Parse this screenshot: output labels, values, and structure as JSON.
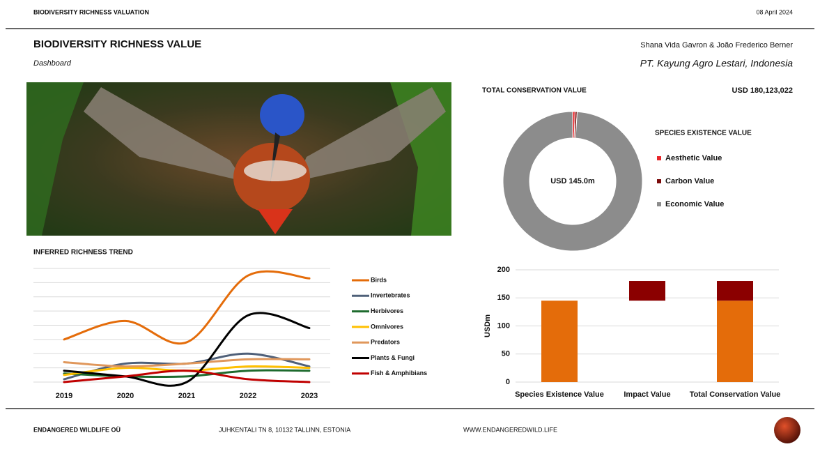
{
  "header": {
    "left": "BIODIVERSITY RICHNESS VALUATION",
    "date": "08 April 2024"
  },
  "title": "BIODIVERSITY RICHNESS VALUE",
  "subtitle": "Dashboard",
  "authors": "Shana Vida Gavron & João Frederico Berner",
  "company": "PT. Kayung Agro Lestari, Indonesia",
  "total_conservation": {
    "label": "TOTAL CONSERVATION VALUE",
    "value": "USD 180,123,022"
  },
  "footer": {
    "company": "ENDANGERED WILDLIFE OÜ",
    "address": "JUHKENTALI TN 8, 10132 TALLINN, ESTONIA",
    "website": "WWW.ENDANGEREDWILD.LIFE"
  },
  "chart_data": [
    {
      "type": "donut",
      "title": "SPECIES EXISTENCE VALUE",
      "center_label": "USD 145.0m",
      "categories": [
        "Aesthetic Value",
        "Carbon Value",
        "Economic Value"
      ],
      "values": [
        0.8,
        0.7,
        143.5
      ],
      "colors": [
        "#e8262a",
        "#7b0a0a",
        "#8c8c8c"
      ]
    },
    {
      "type": "line",
      "title": "INFERRED RICHNESS TREND",
      "categories": [
        "2019",
        "2020",
        "2021",
        "2022",
        "2023"
      ],
      "series": [
        {
          "name": "Birds",
          "color": "#e46c0a",
          "values": [
            3.0,
            4.3,
            2.8,
            7.5,
            7.3
          ]
        },
        {
          "name": "Invertebrates",
          "color": "#4f6079",
          "values": [
            0.2,
            1.3,
            1.3,
            2.0,
            1.1
          ]
        },
        {
          "name": "Herbivores",
          "color": "#1e6b2e",
          "values": [
            0.6,
            0.4,
            0.4,
            0.8,
            0.8
          ]
        },
        {
          "name": "Omnivores",
          "color": "#ffc000",
          "values": [
            0.5,
            1.0,
            0.8,
            1.1,
            1.0
          ]
        },
        {
          "name": "Predators",
          "color": "#e0975b",
          "values": [
            1.4,
            1.1,
            1.3,
            1.6,
            1.6
          ]
        },
        {
          "name": "Plants & Fungi",
          "color": "#000000",
          "values": [
            0.8,
            0.4,
            0.0,
            4.7,
            3.8
          ]
        },
        {
          "name": "Fish & Amphibians",
          "color": "#c00000",
          "values": [
            0.0,
            0.4,
            0.8,
            0.2,
            0.0
          ]
        }
      ],
      "ylim": [
        0,
        8
      ],
      "yticks": [
        0,
        1,
        2,
        3,
        4,
        5,
        6,
        7,
        8
      ],
      "grid": true
    },
    {
      "type": "bar",
      "y_label": "USDm",
      "categories": [
        "Species Existence Value",
        "Impact Value",
        "Total Conservation Value"
      ],
      "series": [
        {
          "color": "#e46c0a",
          "values": [
            145.0,
            null,
            145.0
          ]
        },
        {
          "color": "#8b0000",
          "values": [
            null,
            35.1,
            35.1
          ]
        }
      ],
      "ylim": [
        0,
        200
      ],
      "yticks": [
        0,
        50,
        100,
        150,
        200
      ],
      "grid": true
    }
  ]
}
